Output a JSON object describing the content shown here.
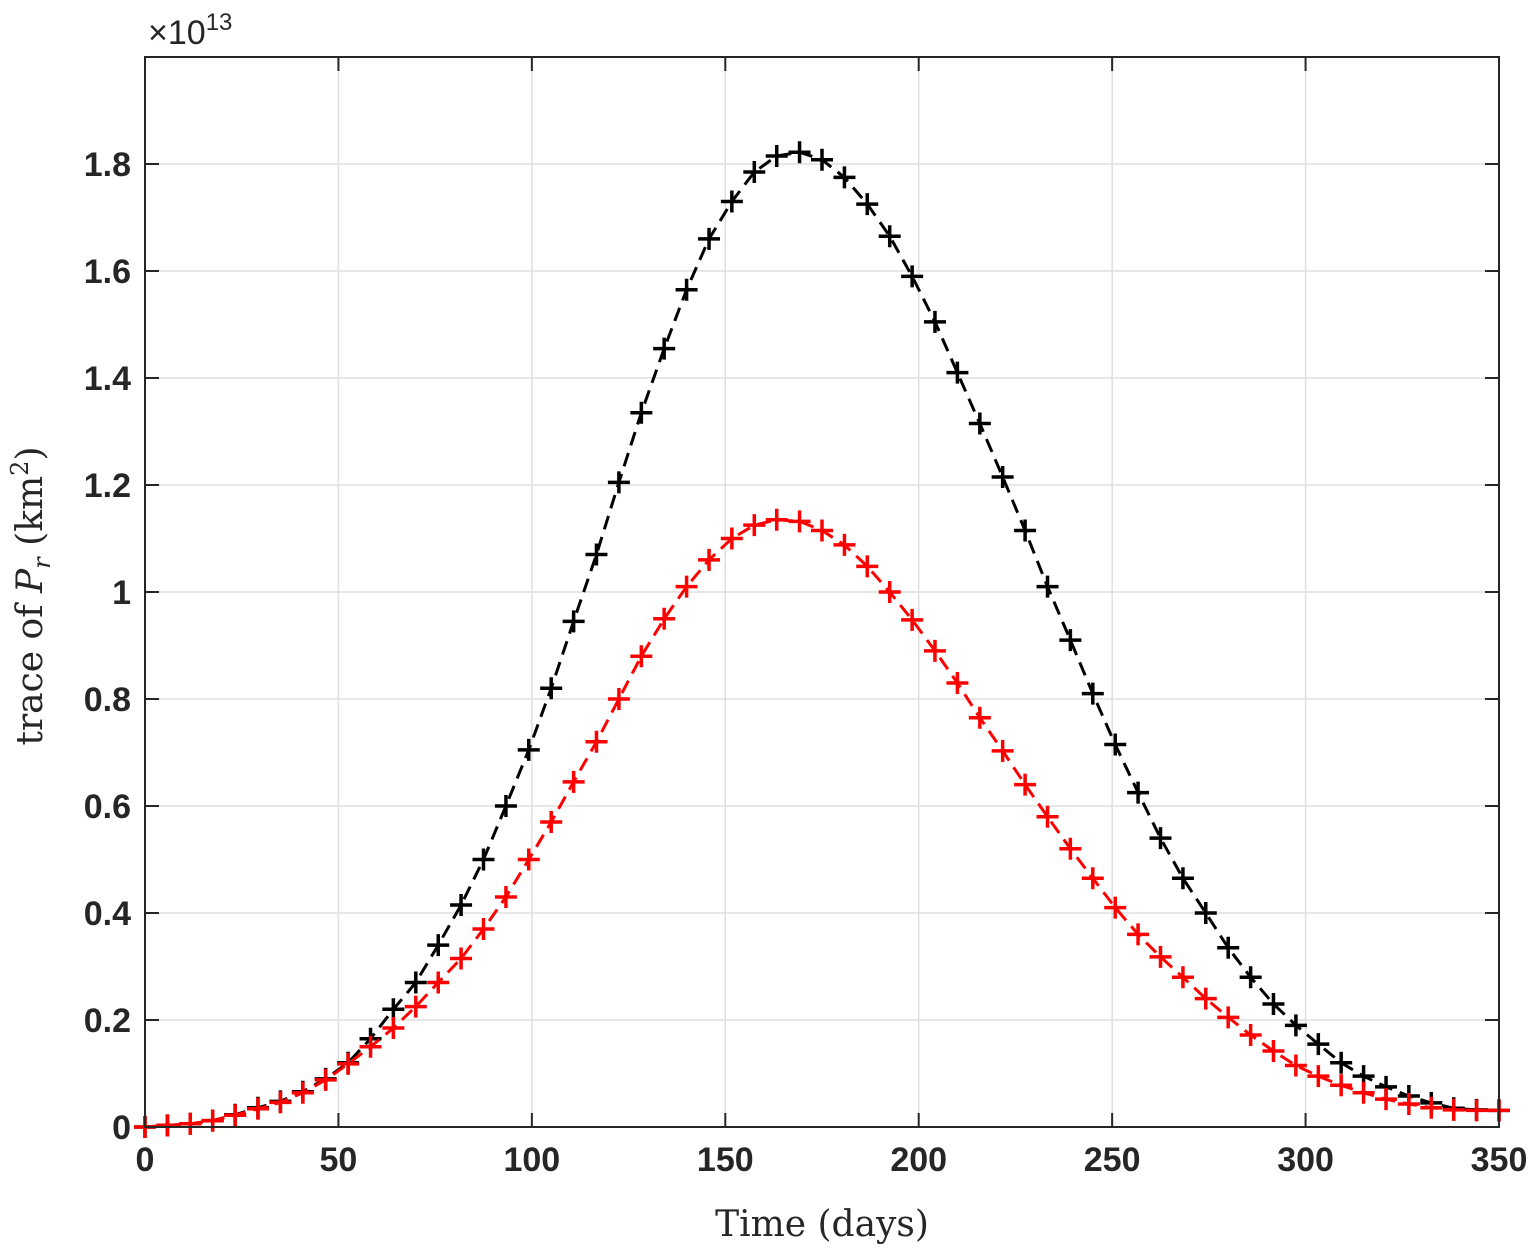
{
  "chart_data": {
    "type": "line",
    "title": "",
    "xlabel": "Time (days)",
    "ylabel_parts": {
      "prefix": "trace of ",
      "var": "P",
      "sub": "r",
      "unit_open": " (km",
      "unit_sup": "2",
      "unit_close": ")"
    },
    "y_exponent_prefix": "×10",
    "y_exponent_power": "13",
    "xlim": [
      0,
      350
    ],
    "ylim": [
      0,
      2.0
    ],
    "xticks": [
      0,
      50,
      100,
      150,
      200,
      250,
      300,
      350
    ],
    "xtick_labels": [
      "0",
      "50",
      "100",
      "150",
      "200",
      "250",
      "300",
      "350"
    ],
    "yticks": [
      0,
      0.2,
      0.4,
      0.6,
      0.8,
      1.0,
      1.2,
      1.4,
      1.6,
      1.8
    ],
    "ytick_labels": [
      "0",
      "0.2",
      "0.4",
      "0.6",
      "0.8",
      "1",
      "1.2",
      "1.4",
      "1.6",
      "1.8"
    ],
    "grid": true,
    "legend": "none",
    "series": [
      {
        "color": "#000000",
        "line_style": "dashed",
        "marker": "plus",
        "x": [
          0,
          5.8,
          11.7,
          17.5,
          23.3,
          29.2,
          35,
          40.8,
          46.7,
          52.5,
          58.3,
          64.2,
          70,
          75.8,
          81.7,
          87.5,
          93.3,
          99.2,
          105,
          110.8,
          116.7,
          122.5,
          128.3,
          134.2,
          140,
          145.8,
          151.7,
          157.5,
          163.3,
          169.2,
          175,
          180.8,
          186.7,
          192.5,
          198.3,
          204.2,
          210,
          215.8,
          221.7,
          227.5,
          233.3,
          239.2,
          245,
          250.8,
          256.7,
          262.5,
          268.3,
          274.2,
          280,
          285.8,
          291.7,
          297.5,
          303.3,
          309.2,
          315,
          320.8,
          326.7,
          332.5,
          338.3,
          344.2,
          350
        ],
        "y": [
          0.0,
          0.003,
          0.006,
          0.012,
          0.023,
          0.036,
          0.048,
          0.066,
          0.09,
          0.12,
          0.165,
          0.22,
          0.27,
          0.34,
          0.415,
          0.5,
          0.6,
          0.705,
          0.82,
          0.945,
          1.07,
          1.205,
          1.335,
          1.455,
          1.565,
          1.66,
          1.73,
          1.785,
          1.815,
          1.822,
          1.808,
          1.775,
          1.725,
          1.665,
          1.59,
          1.505,
          1.41,
          1.315,
          1.215,
          1.115,
          1.01,
          0.91,
          0.81,
          0.715,
          0.625,
          0.54,
          0.465,
          0.4,
          0.335,
          0.28,
          0.23,
          0.19,
          0.155,
          0.12,
          0.095,
          0.075,
          0.058,
          0.045,
          0.035,
          0.032,
          0.031
        ]
      },
      {
        "color": "#ff0000",
        "line_style": "dashed",
        "marker": "plus",
        "x": [
          0,
          5.8,
          11.7,
          17.5,
          23.3,
          29.2,
          35,
          40.8,
          46.7,
          52.5,
          58.3,
          64.2,
          70,
          75.8,
          81.7,
          87.5,
          93.3,
          99.2,
          105,
          110.8,
          116.7,
          122.5,
          128.3,
          134.2,
          140,
          145.8,
          151.7,
          157.5,
          163.3,
          169.2,
          175,
          180.8,
          186.7,
          192.5,
          198.3,
          204.2,
          210,
          215.8,
          221.7,
          227.5,
          233.3,
          239.2,
          245,
          250.8,
          256.7,
          262.5,
          268.3,
          274.2,
          280,
          285.8,
          291.7,
          297.5,
          303.3,
          309.2,
          315,
          320.8,
          326.7,
          332.5,
          338.3,
          344.2,
          350
        ],
        "y": [
          0.0,
          0.003,
          0.006,
          0.012,
          0.022,
          0.034,
          0.046,
          0.064,
          0.088,
          0.118,
          0.15,
          0.185,
          0.225,
          0.27,
          0.315,
          0.37,
          0.43,
          0.5,
          0.57,
          0.645,
          0.72,
          0.8,
          0.88,
          0.95,
          1.01,
          1.06,
          1.1,
          1.125,
          1.135,
          1.132,
          1.115,
          1.088,
          1.048,
          1.0,
          0.948,
          0.89,
          0.83,
          0.765,
          0.703,
          0.64,
          0.58,
          0.52,
          0.465,
          0.41,
          0.36,
          0.318,
          0.28,
          0.24,
          0.205,
          0.172,
          0.142,
          0.115,
          0.095,
          0.078,
          0.064,
          0.052,
          0.043,
          0.036,
          0.032,
          0.031,
          0.031
        ]
      }
    ]
  }
}
